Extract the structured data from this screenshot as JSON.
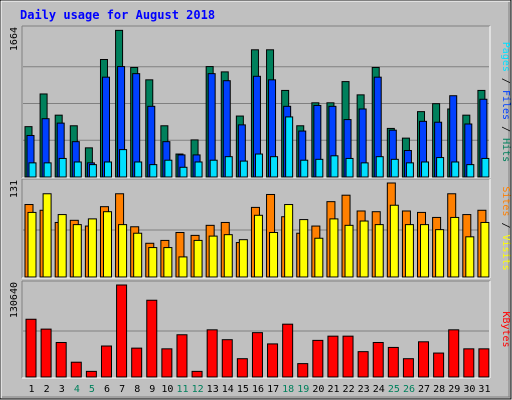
{
  "chart_data": {
    "type": "bar",
    "title": "Daily usage for August 2018",
    "categories": [
      "1",
      "2",
      "3",
      "4",
      "5",
      "6",
      "7",
      "8",
      "9",
      "10",
      "11",
      "12",
      "13",
      "14",
      "15",
      "16",
      "17",
      "18",
      "19",
      "20",
      "21",
      "22",
      "23",
      "24",
      "25",
      "26",
      "27",
      "28",
      "29",
      "30",
      "31"
    ],
    "weekend_days": [
      "4",
      "5",
      "11",
      "12",
      "18",
      "19",
      "25",
      "26"
    ],
    "colors": {
      "title": "#0000ff",
      "background": "#c0c0c0",
      "weekday_label": "#000000",
      "weekend_label": "#00805c",
      "hits": "#00805c",
      "files": "#0040ff",
      "pages": "#00e0ff",
      "visits": "#ffff00",
      "sites": "#ff8000",
      "kbytes": "#ff0000"
    },
    "panels": [
      {
        "id": "hits-files-pages",
        "ymax_label": "1664",
        "ymax": 1664,
        "right_label": [
          {
            "text": "Pages",
            "color": "#00e0ff"
          },
          {
            "text": " / ",
            "color": "#000000"
          },
          {
            "text": "Files",
            "color": "#0040ff"
          },
          {
            "text": " / ",
            "color": "#000000"
          },
          {
            "text": "Hits",
            "color": "#00805c"
          }
        ],
        "series": [
          {
            "name": "Hits",
            "color": "#00805c",
            "values": [
              570,
              940,
              700,
              580,
              330,
              1330,
              1660,
              1240,
              1100,
              580,
              260,
              420,
              1250,
              1190,
              690,
              1440,
              1440,
              980,
              580,
              840,
              840,
              1080,
              930,
              1240,
              550,
              440,
              740,
              830,
              770,
              700,
              980
            ]
          },
          {
            "name": "Files",
            "color": "#0040ff",
            "values": [
              470,
              660,
              610,
              400,
              160,
              1130,
              1250,
              1170,
              800,
              400,
              250,
              250,
              1170,
              1090,
              590,
              1140,
              1100,
              800,
              520,
              810,
              800,
              650,
              770,
              1130,
              530,
              300,
              630,
              620,
              920,
              600,
              880
            ]
          },
          {
            "name": "Pages",
            "color": "#00e0ff",
            "values": [
              160,
              160,
              210,
              170,
              140,
              170,
              310,
              170,
              140,
              190,
              110,
              170,
              190,
              230,
              180,
              260,
              230,
              680,
              190,
              200,
              240,
              210,
              160,
              230,
              200,
              160,
              170,
              220,
              170,
              140,
              210
            ]
          }
        ]
      },
      {
        "id": "visits-sites",
        "ymax_label": "131",
        "ymax": 131,
        "right_label": [
          {
            "text": "Sites",
            "color": "#ff8000"
          },
          {
            "text": " / ",
            "color": "#000000"
          },
          {
            "text": "Visits",
            "color": "#ffff00"
          }
        ],
        "series": [
          {
            "name": "Sites",
            "color": "#ff8000",
            "values": [
              101,
              93,
              76,
              79,
              71,
              98,
              116,
              70,
              47,
              51,
              62,
              58,
              72,
              76,
              48,
              97,
              115,
              84,
              61,
              71,
              105,
              114,
              92,
              91,
              131,
              92,
              90,
              83,
              116,
              87,
              93
            ]
          },
          {
            "name": "Visits",
            "color": "#ffff00",
            "values": [
              90,
              116,
              87,
              73,
              81,
              91,
              73,
              61,
              41,
              41,
              28,
              51,
              57,
              59,
              52,
              86,
              62,
              101,
              80,
              54,
              81,
              72,
              78,
              73,
              100,
              73,
              73,
              66,
              83,
              56,
              76
            ]
          }
        ]
      },
      {
        "id": "kbytes",
        "ymax_label": "130640",
        "ymax": 130640,
        "right_label": [
          {
            "text": "KBytes",
            "color": "#ff0000"
          }
        ],
        "series": [
          {
            "name": "KBytes",
            "color": "#ff0000",
            "values": [
              82000,
              68000,
              49000,
              21000,
              8000,
              44000,
              130640,
              41000,
              109000,
              40000,
              60000,
              8000,
              67000,
              53000,
              26000,
              63000,
              47000,
              75000,
              19000,
              52000,
              58000,
              58000,
              36000,
              49000,
              42000,
              26000,
              50000,
              34000,
              67000,
              40000,
              40000
            ]
          }
        ]
      }
    ]
  }
}
